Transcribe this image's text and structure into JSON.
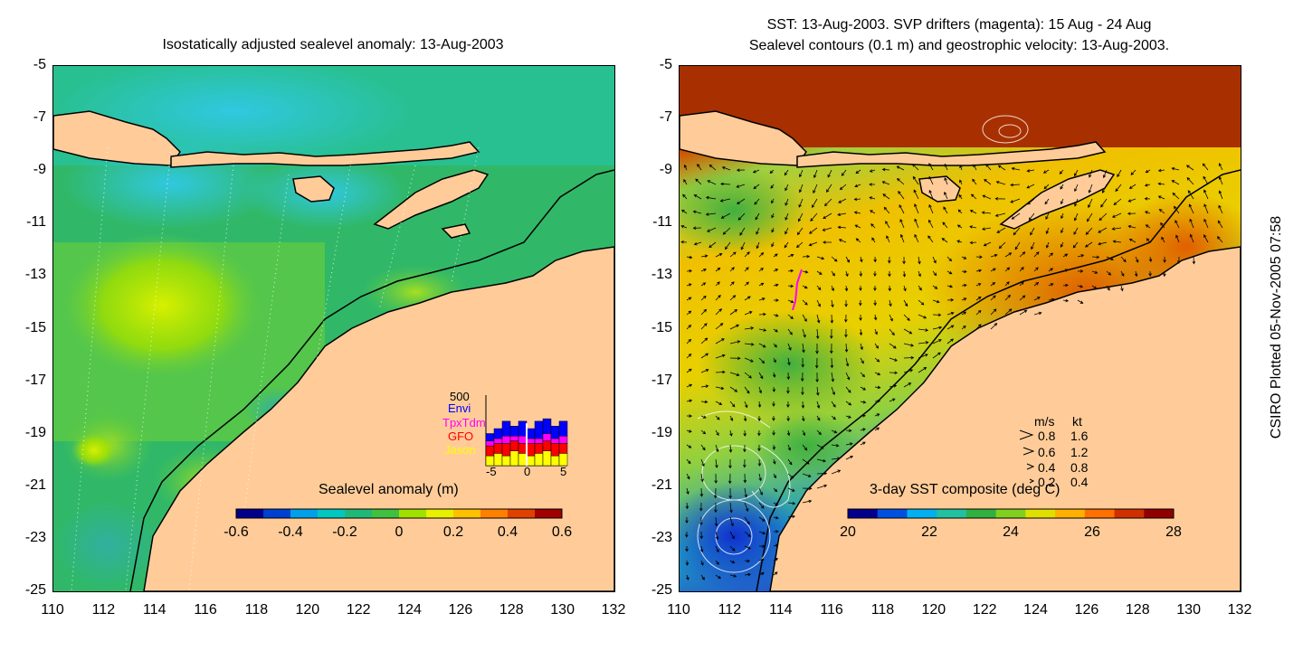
{
  "left_panel": {
    "title": "Isostatically adjusted sealevel anomaly: 13-Aug-2003",
    "colorbar": {
      "label": "Sealevel anomaly (m)",
      "ticks": [
        "-0.6",
        "-0.4",
        "-0.2",
        "0",
        "0.2",
        "0.4",
        "0.6"
      ],
      "colors": [
        "#00008a",
        "#0040d0",
        "#00a0e8",
        "#00c8c0",
        "#20b878",
        "#40c040",
        "#a0e000",
        "#e8f000",
        "#ffc000",
        "#ff8000",
        "#e04000",
        "#a00000"
      ]
    },
    "mission_legend": {
      "max_count": "500",
      "missions": [
        "Envi",
        "TpxTdm",
        "GFO",
        "Jason"
      ],
      "mission_colors": [
        "#0000ff",
        "#ff00ff",
        "#ff0000",
        "#ffff00"
      ],
      "x_ticks": [
        "-5",
        "0",
        "5"
      ],
      "bar_values": {
        "Jason": [
          0.2,
          0.25,
          0.2,
          0.3,
          0.25,
          0.2,
          0.25,
          0.3,
          0.2,
          0.25
        ],
        "GFO": [
          0.2,
          0.2,
          0.25,
          0.2,
          0.2,
          0.25,
          0.2,
          0.2,
          0.25,
          0.2
        ],
        "TpxTdm": [
          0.1,
          0.1,
          0.15,
          0.1,
          0.15,
          0.1,
          0.1,
          0.15,
          0.1,
          0.15
        ],
        "Envi": [
          0.15,
          0.2,
          0.3,
          0.2,
          0.3,
          0.2,
          0.35,
          0.3,
          0.25,
          0.3
        ]
      }
    }
  },
  "right_panel": {
    "title_line1": "SST: 13-Aug-2003. SVP drifters (magenta): 15 Aug - 24 Aug",
    "title_line2": "Sealevel contours (0.1 m) and geostrophic velocity: 13-Aug-2003.",
    "colorbar": {
      "label": "3-day SST composite (deg C)",
      "ticks": [
        "20",
        "22",
        "24",
        "26",
        "28"
      ],
      "colors": [
        "#00008a",
        "#0050e0",
        "#00b0f0",
        "#20c0a0",
        "#30b040",
        "#80d020",
        "#e0e000",
        "#ffb000",
        "#ff7000",
        "#d03000",
        "#900000"
      ]
    },
    "speed_legend": {
      "header_ms": "m/s",
      "header_kt": "kt",
      "rows": [
        {
          "ms": "0.8",
          "kt": "1.6"
        },
        {
          "ms": "0.6",
          "kt": "1.2"
        },
        {
          "ms": "0.4",
          "kt": "0.8"
        },
        {
          "ms": "0.2",
          "kt": "0.4"
        }
      ]
    }
  },
  "axes": {
    "y_ticks": [
      "-5",
      "-7",
      "-9",
      "-11",
      "-13",
      "-15",
      "-17",
      "-19",
      "-21",
      "-23",
      "-25"
    ],
    "x_ticks": [
      "110",
      "112",
      "114",
      "116",
      "118",
      "120",
      "122",
      "124",
      "126",
      "128",
      "130",
      "132"
    ],
    "lon_range": [
      110,
      132
    ],
    "lat_range": [
      -25,
      -5
    ]
  },
  "plot_note": "CSIRO Plotted 05-Nov-2005 07:58",
  "colors": {
    "land": "#ffcc99",
    "ocean_left": "#20b878",
    "coastline": "#000000"
  }
}
